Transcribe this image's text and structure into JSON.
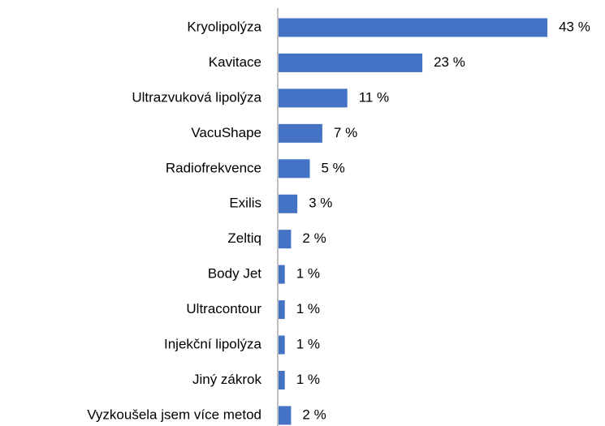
{
  "chart_data": {
    "type": "bar",
    "orientation": "horizontal",
    "categories": [
      "Kryolipolýza",
      "Kavitace",
      "Ultrazvuková lipolýza",
      "VacuShape",
      "Radiofrekvence",
      "Exilis",
      "Zeltiq",
      "Body Jet",
      "Ultracontour",
      "Injekční lipolýza",
      "Jiný zákrok",
      "Vyzkoušela jsem více metod"
    ],
    "values": [
      43,
      23,
      11,
      7,
      5,
      3,
      2,
      1,
      1,
      1,
      1,
      2
    ],
    "value_labels": [
      "43 %",
      "23 %",
      "11 %",
      "7 %",
      "5 %",
      "3 %",
      "2 %",
      "1 %",
      "1 %",
      "1 %",
      "1 %",
      "2 %"
    ],
    "color": "#4472c4"
  }
}
